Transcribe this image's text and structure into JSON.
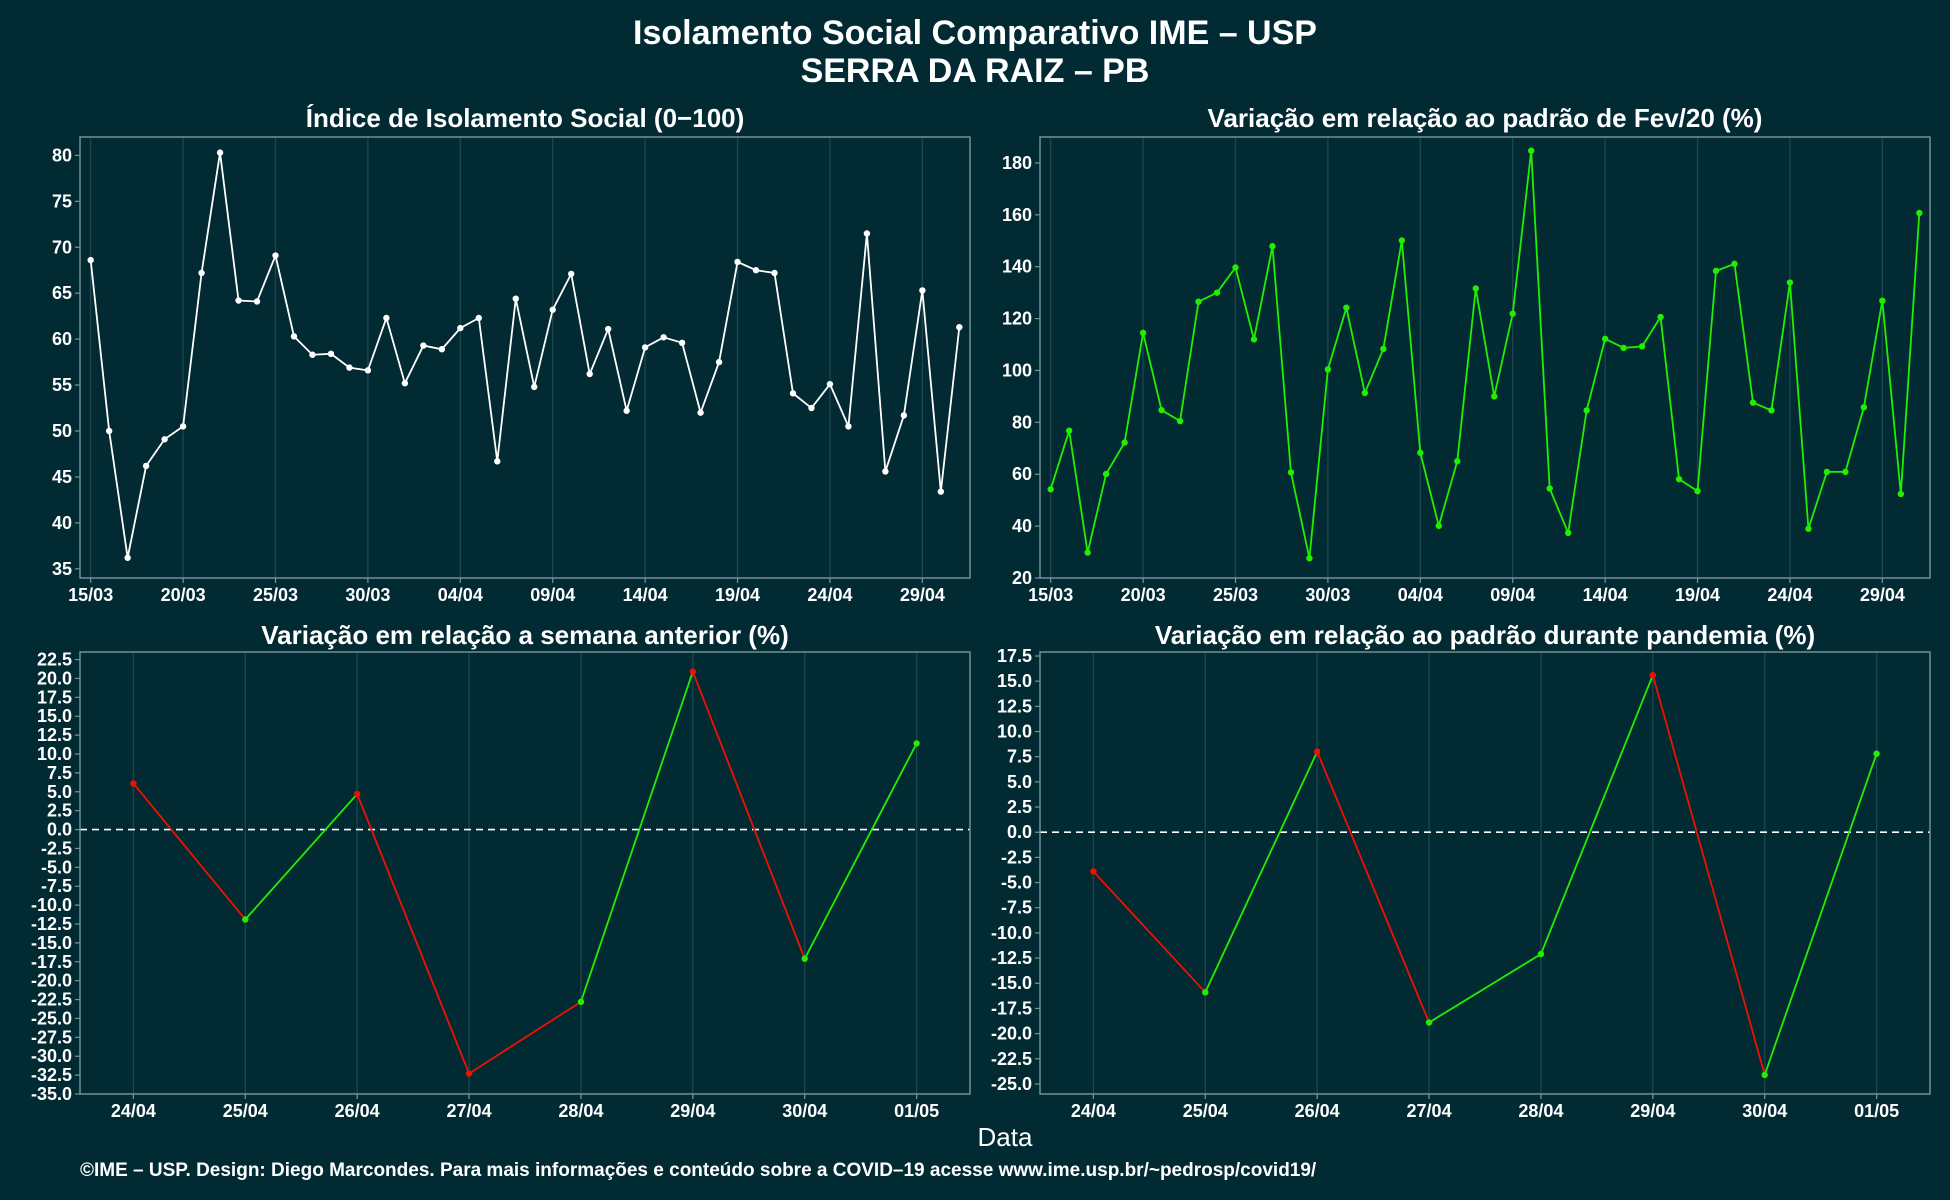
{
  "title_line1": "Isolamento Social Comparativo IME – USP",
  "title_line2": "SERRA DA RAIZ – PB",
  "xlabel": "Data",
  "caption": "©IME – USP. Design: Diego Marcondes. Para mais informações e conteúdo sobre a COVID–19 acesse www.ime.usp.br/~pedrosp/covid19/",
  "colors": {
    "background": "#022a33",
    "line_white": "#ffffff",
    "line_green": "#22ee00",
    "line_red": "#ee1100",
    "grid": "#1d4650",
    "frame": "#7a969c"
  },
  "chart_data": [
    {
      "type": "line",
      "title": "Índice de Isolamento Social (0−100)",
      "color": "#ffffff",
      "x": [
        "15/03",
        "16/03",
        "17/03",
        "18/03",
        "19/03",
        "20/03",
        "21/03",
        "22/03",
        "23/03",
        "24/03",
        "25/03",
        "26/03",
        "27/03",
        "28/03",
        "29/03",
        "30/03",
        "31/03",
        "01/04",
        "02/04",
        "03/04",
        "04/04",
        "05/04",
        "06/04",
        "07/04",
        "08/04",
        "09/04",
        "10/04",
        "11/04",
        "12/04",
        "13/04",
        "14/04",
        "15/04",
        "16/04",
        "17/04",
        "18/04",
        "19/04",
        "20/04",
        "21/04",
        "22/04",
        "23/04",
        "24/04",
        "25/04",
        "26/04",
        "27/04",
        "28/04",
        "29/04",
        "30/04",
        "01/05"
      ],
      "values": [
        68.6,
        50.0,
        36.2,
        46.2,
        49.1,
        50.5,
        67.2,
        80.3,
        64.2,
        64.1,
        69.1,
        60.3,
        58.3,
        58.4,
        56.9,
        56.6,
        62.3,
        55.2,
        59.3,
        58.9,
        61.2,
        62.3,
        46.7,
        64.4,
        54.8,
        63.2,
        67.1,
        56.2,
        61.1,
        52.2,
        59.1,
        60.2,
        59.6,
        52.0,
        57.5,
        68.4,
        67.5,
        67.2,
        54.1,
        52.5,
        55.1,
        50.5,
        71.5,
        45.6,
        51.7,
        65.3,
        43.4,
        61.3
      ],
      "x_ticks": [
        "15/03",
        "20/03",
        "25/03",
        "30/03",
        "04/04",
        "09/04",
        "14/04",
        "19/04",
        "24/04",
        "29/04"
      ],
      "ylim": [
        34,
        82
      ],
      "y_ticks": [
        35,
        40,
        45,
        50,
        55,
        60,
        65,
        70,
        75,
        80
      ],
      "grid": true
    },
    {
      "type": "line",
      "title": "Variação em relação ao padrão de Fev/20 (%)",
      "color": "#22ee00",
      "x": [
        "15/03",
        "16/03",
        "17/03",
        "18/03",
        "19/03",
        "20/03",
        "21/03",
        "22/03",
        "23/03",
        "24/03",
        "25/03",
        "26/03",
        "27/03",
        "28/03",
        "29/03",
        "30/03",
        "31/03",
        "01/04",
        "02/04",
        "03/04",
        "04/04",
        "05/04",
        "06/04",
        "07/04",
        "08/04",
        "09/04",
        "10/04",
        "11/04",
        "12/04",
        "13/04",
        "14/04",
        "15/04",
        "16/04",
        "17/04",
        "18/04",
        "19/04",
        "20/04",
        "21/04",
        "22/04",
        "23/04",
        "24/04",
        "25/04",
        "26/04",
        "27/04",
        "28/04",
        "29/04",
        "30/04",
        "01/05"
      ],
      "values": [
        54.2,
        76.8,
        29.8,
        60.1,
        72.2,
        114.5,
        84.7,
        80.5,
        126.5,
        130.0,
        139.7,
        112.0,
        147.9,
        60.7,
        27.6,
        100.4,
        124.2,
        91.3,
        108.3,
        150.1,
        68.3,
        40.1,
        65.0,
        131.6,
        90.0,
        121.9,
        184.7,
        54.5,
        37.4,
        84.6,
        112.2,
        108.7,
        109.3,
        120.6,
        58.1,
        53.5,
        138.4,
        141.1,
        87.6,
        84.6,
        133.9,
        39.0,
        60.9,
        60.9,
        85.8,
        126.9,
        52.4,
        160.7
      ],
      "x_ticks": [
        "15/03",
        "20/03",
        "25/03",
        "30/03",
        "04/04",
        "09/04",
        "14/04",
        "19/04",
        "24/04",
        "29/04"
      ],
      "ylim": [
        20,
        190
      ],
      "y_ticks": [
        20,
        40,
        60,
        80,
        100,
        120,
        140,
        160,
        180
      ],
      "grid": true
    },
    {
      "type": "line",
      "title": "Variação em relação a semana anterior (%)",
      "x": [
        "24/04",
        "25/04",
        "26/04",
        "27/04",
        "28/04",
        "29/04",
        "30/04",
        "01/05"
      ],
      "values": [
        6.1,
        -11.9,
        4.7,
        -32.3,
        -22.8,
        20.9,
        -17.1,
        11.4
      ],
      "segment_colors": [
        "red",
        "green",
        "red",
        "red",
        "green",
        "red",
        "green"
      ],
      "x_ticks": [
        "24/04",
        "25/04",
        "26/04",
        "27/04",
        "28/04",
        "29/04",
        "30/04",
        "01/05"
      ],
      "ylim": [
        -35,
        23.5
      ],
      "y_ticks": [
        22.5,
        20.0,
        17.5,
        15.0,
        12.5,
        10.0,
        7.5,
        5.0,
        2.5,
        0.0,
        -2.5,
        -5.0,
        -7.5,
        -10.0,
        -12.5,
        -15.0,
        -17.5,
        -20.0,
        -22.5,
        -25.0,
        -27.5,
        -30.0,
        -32.5,
        -35.0
      ],
      "reference_line": 0,
      "grid": true
    },
    {
      "type": "line",
      "title": "Variação em relação ao padrão durante pandemia (%)",
      "x": [
        "24/04",
        "25/04",
        "26/04",
        "27/04",
        "28/04",
        "29/04",
        "30/04",
        "01/05"
      ],
      "values": [
        -3.9,
        -15.9,
        8.0,
        -18.9,
        -12.1,
        15.6,
        -24.1,
        7.8
      ],
      "segment_colors": [
        "red",
        "green",
        "red",
        "green",
        "green",
        "red",
        "green"
      ],
      "x_ticks": [
        "24/04",
        "25/04",
        "26/04",
        "27/04",
        "28/04",
        "29/04",
        "30/04",
        "01/05"
      ],
      "ylim": [
        -26,
        17.9
      ],
      "y_ticks": [
        17.5,
        15.0,
        12.5,
        10.0,
        7.5,
        5.0,
        2.5,
        0.0,
        -2.5,
        -5.0,
        -7.5,
        -10.0,
        -12.5,
        -15.0,
        -17.5,
        -20.0,
        -22.5,
        -25.0
      ],
      "reference_line": 0,
      "grid": true
    }
  ]
}
